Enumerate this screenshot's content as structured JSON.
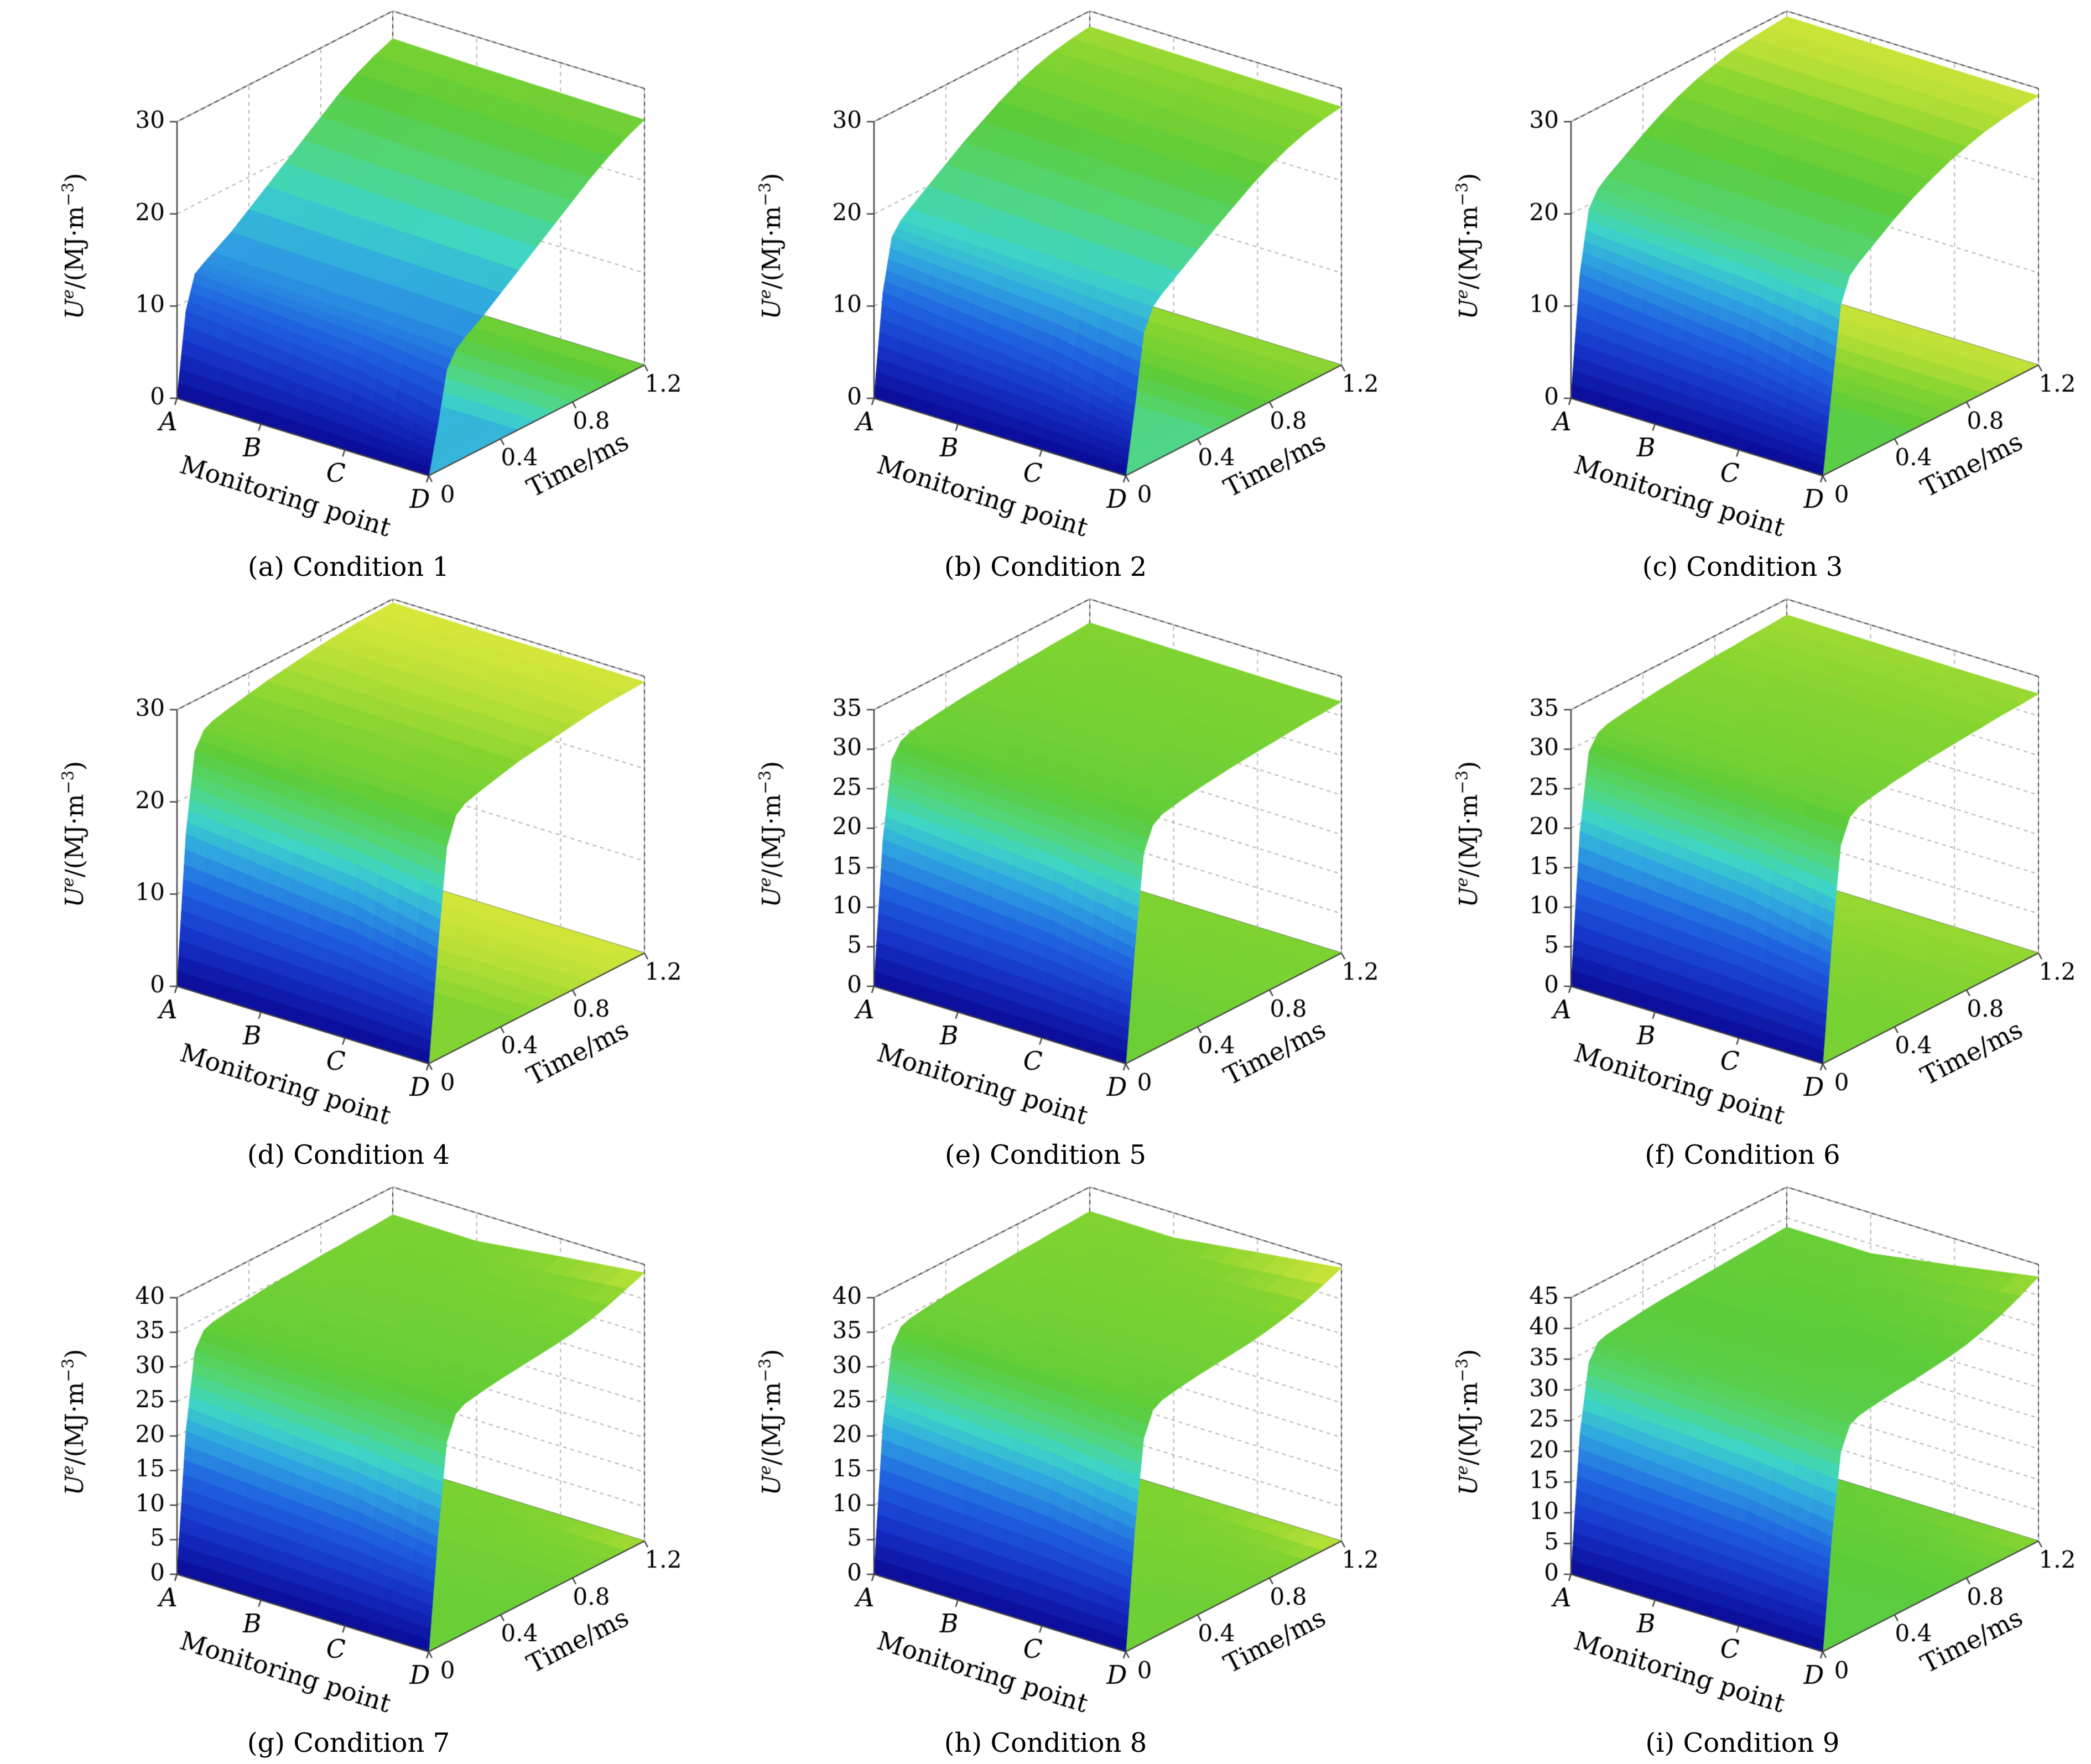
{
  "page": {
    "background": "#ffffff"
  },
  "chart_common": {
    "type": "surface",
    "xlabel": "Monitoring point",
    "ylabel": "Time/ms",
    "zlabel_text": "Uᵉ/(MJ·m⁻³)",
    "zlabel": {
      "pre": "U",
      "sup": "e",
      "mid": "/(MJ·m",
      "sup2": "−3",
      "post": ")"
    },
    "categories": [
      "A",
      "B",
      "C",
      "D"
    ],
    "times": [
      0,
      0.05,
      0.1,
      0.15,
      0.2,
      0.3,
      0.4,
      0.5,
      0.6,
      0.7,
      0.8,
      0.9,
      1.0,
      1.1,
      1.2
    ],
    "time_ticks": [
      0,
      0.4,
      0.8,
      1.2
    ],
    "grid": true,
    "colormap_stops": [
      "#0a0a96",
      "#1634c8",
      "#2064e0",
      "#30a8e0",
      "#3ed6c6",
      "#52d67a",
      "#5ccc3a",
      "#84d430",
      "#ebeb3c"
    ],
    "colors": {
      "axis": "#444444",
      "gridline": "#b4b4b4",
      "text": "#000000"
    }
  },
  "chart_data": [
    {
      "caption": "(a) Condition 1",
      "zlim": [
        0,
        30
      ],
      "ztick": 10,
      "series": [
        {
          "name": "A",
          "values": [
            0,
            9,
            12.5,
            13.2,
            13.8,
            15,
            16.5,
            18,
            19.5,
            21,
            22.5,
            24,
            25.2,
            26.2,
            27
          ]
        },
        {
          "name": "B",
          "values": [
            0,
            8,
            12,
            13,
            13.6,
            14.8,
            16.2,
            17.7,
            19.2,
            20.7,
            22.2,
            23.7,
            25,
            26,
            26.8
          ]
        },
        {
          "name": "C",
          "values": [
            0,
            7,
            11.5,
            12.7,
            13.4,
            14.6,
            16,
            17.5,
            19,
            20.5,
            22,
            23.5,
            24.8,
            25.8,
            26.7
          ]
        },
        {
          "name": "D",
          "values": [
            0,
            5,
            10.5,
            12.2,
            13,
            14.3,
            15.8,
            17.3,
            18.8,
            20.3,
            21.8,
            23.3,
            24.6,
            25.7,
            26.6
          ]
        }
      ]
    },
    {
      "caption": "(b) Condition 2",
      "zlim": [
        0,
        30
      ],
      "ztick": 10,
      "series": [
        {
          "name": "A",
          "values": [
            0,
            11,
            16.5,
            17.8,
            18.6,
            20,
            21.4,
            22.8,
            24,
            25.2,
            26.2,
            27,
            27.6,
            28,
            28.3
          ]
        },
        {
          "name": "B",
          "values": [
            0,
            10,
            16,
            17.5,
            18.3,
            19.7,
            21.1,
            22.5,
            23.8,
            25,
            26,
            26.8,
            27.5,
            27.9,
            28.2
          ]
        },
        {
          "name": "C",
          "values": [
            0,
            9,
            15.5,
            17.2,
            18,
            19.4,
            20.8,
            22.2,
            23.5,
            24.7,
            25.8,
            26.6,
            27.3,
            27.8,
            28.1
          ]
        },
        {
          "name": "D",
          "values": [
            0,
            7,
            14.5,
            16.8,
            17.7,
            19.1,
            20.5,
            21.9,
            23.2,
            24.5,
            25.6,
            26.5,
            27.2,
            27.7,
            28
          ]
        }
      ]
    },
    {
      "caption": "(c) Condition 3",
      "zlim": [
        0,
        30
      ],
      "ztick": 10,
      "series": [
        {
          "name": "A",
          "values": [
            0,
            13,
            19.5,
            21.2,
            22,
            23.3,
            24.6,
            25.8,
            26.8,
            27.6,
            28.2,
            28.7,
            29,
            29.2,
            29.4
          ]
        },
        {
          "name": "B",
          "values": [
            0,
            12,
            19,
            20.9,
            21.7,
            23,
            24.3,
            25.5,
            26.5,
            27.4,
            28,
            28.5,
            28.9,
            29.1,
            29.3
          ]
        },
        {
          "name": "C",
          "values": [
            0,
            11,
            18.5,
            20.6,
            21.4,
            22.8,
            24.1,
            25.3,
            26.3,
            27.2,
            27.9,
            28.4,
            28.8,
            29,
            29.2
          ]
        },
        {
          "name": "D",
          "values": [
            0,
            9,
            17.5,
            20.2,
            21.1,
            22.5,
            23.9,
            25.1,
            26.1,
            27,
            27.7,
            28.3,
            28.7,
            29,
            29.2
          ]
        }
      ]
    },
    {
      "caption": "(d) Condition 4",
      "zlim": [
        0,
        30
      ],
      "ztick": 10,
      "series": [
        {
          "name": "A",
          "values": [
            0,
            16,
            24.5,
            26.3,
            26.8,
            27.3,
            27.7,
            28.1,
            28.4,
            28.7,
            29,
            29.2,
            29.4,
            29.5,
            29.6
          ]
        },
        {
          "name": "B",
          "values": [
            0,
            15,
            24,
            26,
            26.6,
            27.1,
            27.6,
            28,
            28.3,
            28.6,
            28.9,
            29.1,
            29.3,
            29.4,
            29.5
          ]
        },
        {
          "name": "C",
          "values": [
            0,
            14,
            23.5,
            25.8,
            26.4,
            27,
            27.5,
            27.9,
            28.2,
            28.5,
            28.8,
            29,
            29.2,
            29.4,
            29.5
          ]
        },
        {
          "name": "D",
          "values": [
            0,
            12,
            22.5,
            25.4,
            26.2,
            26.8,
            27.3,
            27.8,
            28.1,
            28.4,
            28.7,
            29,
            29.2,
            29.3,
            29.4
          ]
        }
      ]
    },
    {
      "caption": "(e) Condition 5",
      "zlim": [
        0,
        35
      ],
      "ztick": 5,
      "series": [
        {
          "name": "A",
          "values": [
            0,
            18,
            27.5,
            29.3,
            29.8,
            30.2,
            30.5,
            30.8,
            31,
            31.2,
            31.4,
            31.5,
            31.7,
            31.8,
            32
          ]
        },
        {
          "name": "B",
          "values": [
            0,
            17,
            27,
            29,
            29.6,
            30,
            30.4,
            30.7,
            30.9,
            31.1,
            31.3,
            31.4,
            31.6,
            31.7,
            31.9
          ]
        },
        {
          "name": "C",
          "values": [
            0,
            16,
            26.5,
            28.8,
            29.4,
            29.9,
            30.3,
            30.6,
            30.8,
            31,
            31.2,
            31.4,
            31.5,
            31.7,
            31.8
          ]
        },
        {
          "name": "D",
          "values": [
            0,
            14,
            25.5,
            28.4,
            29.2,
            29.7,
            30.1,
            30.4,
            30.7,
            30.9,
            31.1,
            31.3,
            31.5,
            31.6,
            31.8
          ]
        }
      ]
    },
    {
      "caption": "(f) Condition 6",
      "zlim": [
        0,
        35
      ],
      "ztick": 5,
      "series": [
        {
          "name": "A",
          "values": [
            0,
            19,
            28.5,
            30.3,
            30.8,
            31.2,
            31.5,
            31.8,
            32,
            32.2,
            32.4,
            32.5,
            32.7,
            32.8,
            33
          ]
        },
        {
          "name": "B",
          "values": [
            0,
            18,
            28,
            30,
            30.6,
            31,
            31.4,
            31.7,
            31.9,
            32.1,
            32.3,
            32.4,
            32.6,
            32.7,
            32.9
          ]
        },
        {
          "name": "C",
          "values": [
            0,
            17,
            27.5,
            29.8,
            30.4,
            30.9,
            31.3,
            31.6,
            31.8,
            32,
            32.2,
            32.4,
            32.5,
            32.7,
            32.8
          ]
        },
        {
          "name": "D",
          "values": [
            0,
            15,
            26.5,
            29.4,
            30.2,
            30.7,
            31.1,
            31.4,
            31.7,
            31.9,
            32.1,
            32.3,
            32.5,
            32.6,
            32.8
          ]
        }
      ]
    },
    {
      "caption": "(g) Condition 7",
      "zlim": [
        0,
        40
      ],
      "ztick": 5,
      "series": [
        {
          "name": "A",
          "values": [
            0,
            20,
            31,
            33.3,
            33.8,
            34.2,
            34.5,
            34.8,
            35,
            35.2,
            35.4,
            35.5,
            35.7,
            35.8,
            36
          ]
        },
        {
          "name": "B",
          "values": [
            0,
            19,
            30.5,
            33,
            33.6,
            34,
            34.4,
            34.7,
            34.9,
            35.1,
            35.3,
            35.4,
            35.6,
            35.7,
            35.9
          ]
        },
        {
          "name": "C",
          "values": [
            0,
            18,
            30,
            32.8,
            33.4,
            33.9,
            34.3,
            34.6,
            34.8,
            35,
            35.3,
            35.6,
            36,
            36.6,
            37.4
          ]
        },
        {
          "name": "D",
          "values": [
            0,
            16,
            29,
            32.4,
            33.2,
            33.7,
            34.1,
            34.4,
            34.7,
            35,
            35.4,
            36,
            36.8,
            37.8,
            38.8
          ]
        }
      ]
    },
    {
      "caption": "(h) Condition 8",
      "zlim": [
        0,
        40
      ],
      "ztick": 5,
      "series": [
        {
          "name": "A",
          "values": [
            0,
            21,
            31.5,
            33.8,
            34.3,
            34.7,
            35,
            35.3,
            35.5,
            35.7,
            35.9,
            36,
            36.2,
            36.3,
            36.5
          ]
        },
        {
          "name": "B",
          "values": [
            0,
            20,
            31,
            33.5,
            34.1,
            34.5,
            34.9,
            35.2,
            35.4,
            35.6,
            35.8,
            35.9,
            36.1,
            36.2,
            36.4
          ]
        },
        {
          "name": "C",
          "values": [
            0,
            19,
            30.5,
            33.3,
            33.9,
            34.4,
            34.8,
            35.1,
            35.3,
            35.5,
            35.8,
            36.1,
            36.5,
            37.2,
            38
          ]
        },
        {
          "name": "D",
          "values": [
            0,
            17,
            29.5,
            32.9,
            33.7,
            34.2,
            34.6,
            34.9,
            35.2,
            35.5,
            36,
            36.6,
            37.4,
            38.4,
            39.5
          ]
        }
      ]
    },
    {
      "caption": "(i) Condition 9",
      "zlim": [
        0,
        45
      ],
      "ztick": 5,
      "series": [
        {
          "name": "A",
          "values": [
            0,
            22,
            33,
            35.5,
            36,
            36.4,
            36.8,
            37.1,
            37.3,
            37.5,
            37.7,
            37.9,
            38.1,
            38.3,
            38.5
          ]
        },
        {
          "name": "B",
          "values": [
            0,
            21,
            32.5,
            35.2,
            35.8,
            36.2,
            36.6,
            36.9,
            37.1,
            37.4,
            37.6,
            37.8,
            38,
            38.2,
            38.4
          ]
        },
        {
          "name": "C",
          "values": [
            0,
            20,
            32,
            35,
            35.6,
            36.1,
            36.5,
            36.8,
            37,
            37.3,
            37.6,
            38,
            38.6,
            39.5,
            40.6
          ]
        },
        {
          "name": "D",
          "values": [
            0,
            18,
            31,
            34.6,
            35.4,
            35.9,
            36.3,
            36.6,
            37,
            37.4,
            38,
            38.9,
            40,
            41.4,
            43
          ]
        }
      ]
    }
  ]
}
